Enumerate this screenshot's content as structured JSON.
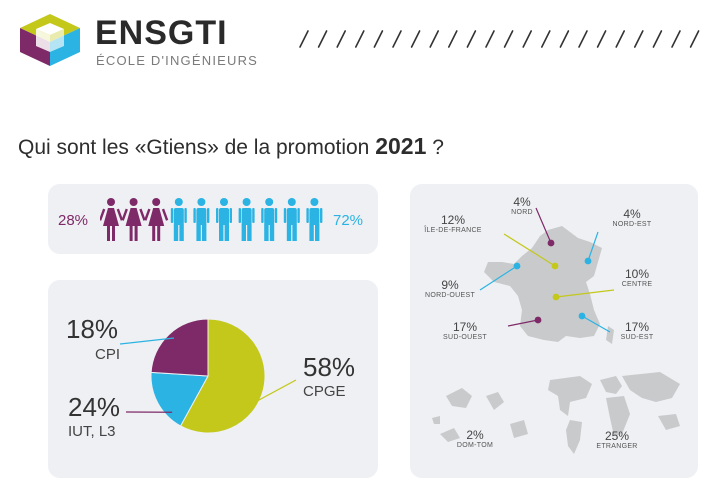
{
  "brand": {
    "name": "ENSGTI",
    "subtitle": "ÉCOLE D'INGÉNIEURS",
    "colors": {
      "purple": "#7e2a68",
      "cyan": "#2bb3e3",
      "lime": "#c3c81a"
    }
  },
  "title": {
    "prefix": "Qui sont les «Gtiens» de la promotion",
    "year": "2021",
    "suffix": "?"
  },
  "gender": {
    "female_pct": "28%",
    "male_pct": "72%",
    "female_icons": 3,
    "male_icons": 7,
    "female_color": "#7e2a68",
    "male_color": "#2bb3e3"
  },
  "chart_data": [
    {
      "type": "pie",
      "title": "",
      "slices": [
        {
          "label": "CPGE",
          "value": 58,
          "text": "58%",
          "color": "#c3c81a"
        },
        {
          "label": "CPI",
          "value": 18,
          "text": "18%",
          "color": "#2bb3e3"
        },
        {
          "label": "IUT, L3",
          "value": 24,
          "text": "24%",
          "color": "#7e2a68"
        }
      ]
    },
    {
      "type": "table",
      "title": "",
      "regions": [
        {
          "pct": "4%",
          "name": "NORD",
          "value": 4,
          "color": "#7e2a68"
        },
        {
          "pct": "12%",
          "name": "ÎLE-DE-FRANCE",
          "value": 12,
          "color": "#c3c81a"
        },
        {
          "pct": "4%",
          "name": "NORD-EST",
          "value": 4,
          "color": "#2bb3e3"
        },
        {
          "pct": "9%",
          "name": "NORD-OUEST",
          "value": 9,
          "color": "#2bb3e3"
        },
        {
          "pct": "10%",
          "name": "CENTRE",
          "value": 10,
          "color": "#c3c81a"
        },
        {
          "pct": "17%",
          "name": "SUD-OUEST",
          "value": 17,
          "color": "#7e2a68"
        },
        {
          "pct": "17%",
          "name": "SUD-EST",
          "value": 17,
          "color": "#2bb3e3"
        },
        {
          "pct": "2%",
          "name": "DOM-TOM",
          "value": 2,
          "color": "#555555"
        },
        {
          "pct": "25%",
          "name": "ETRANGER",
          "value": 25,
          "color": "#555555"
        }
      ]
    }
  ]
}
